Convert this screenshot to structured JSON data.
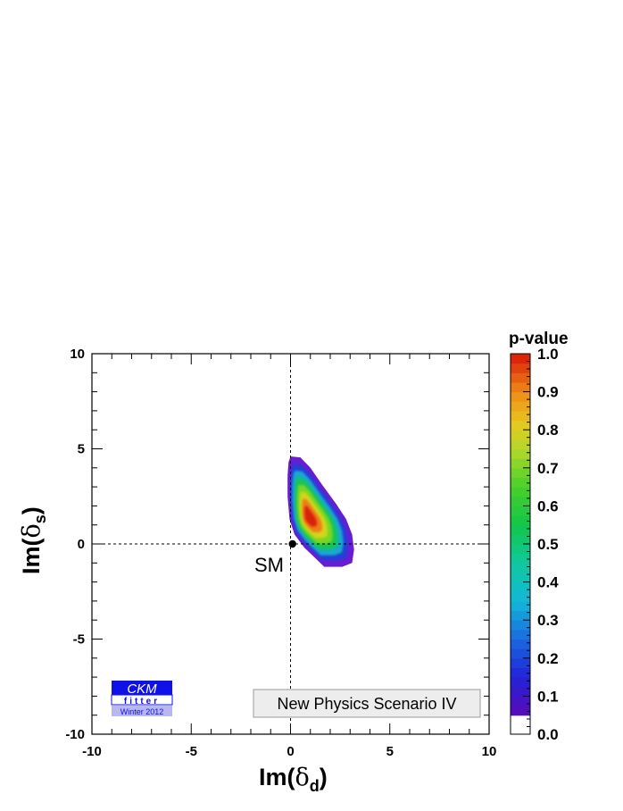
{
  "chart_data": {
    "type": "heatmap",
    "xlabel_main": "Im(",
    "xlabel_symbol": "δ",
    "xlabel_sub": "d",
    "xlabel_close": ")",
    "ylabel_main": "Im(",
    "ylabel_symbol": "δ",
    "ylabel_sub": "s",
    "ylabel_close": ")",
    "xlim": [
      -10,
      10
    ],
    "ylim": [
      -10,
      10
    ],
    "x_ticks": [
      -10,
      -5,
      0,
      5,
      10
    ],
    "y_ticks": [
      -10,
      -5,
      0,
      5,
      10
    ],
    "x_tick_labels": [
      "-10",
      "-5",
      "0",
      "5",
      "10"
    ],
    "y_tick_labels": [
      "-10",
      "-5",
      "0",
      "5",
      "10"
    ],
    "reference_lines": {
      "x": 0,
      "y": 0,
      "style": "dashed"
    },
    "sm_point": {
      "x": 0.1,
      "y": 0.0,
      "label": "SM"
    },
    "best_fit": {
      "x": 0.9,
      "y": 1.4
    },
    "p_value_regions": [
      {
        "p": 0.05,
        "color": "#6a1cd0",
        "outline": [
          [
            0.0,
            4.6
          ],
          [
            0.5,
            4.55
          ],
          [
            1.0,
            4.0
          ],
          [
            1.6,
            3.1
          ],
          [
            2.3,
            2.1
          ],
          [
            2.8,
            1.3
          ],
          [
            3.1,
            0.5
          ],
          [
            3.2,
            -0.3
          ],
          [
            3.1,
            -1.0
          ],
          [
            2.6,
            -1.2
          ],
          [
            1.7,
            -1.2
          ],
          [
            1.2,
            -0.7
          ],
          [
            0.7,
            -0.2
          ],
          [
            0.2,
            0.5
          ],
          [
            -0.05,
            1.3
          ],
          [
            -0.15,
            2.5
          ],
          [
            -0.15,
            3.6
          ],
          [
            -0.1,
            4.3
          ]
        ]
      },
      {
        "p": 0.2,
        "color": "#2a3ad8"
      },
      {
        "p": 0.35,
        "color": "#16aacd"
      },
      {
        "p": 0.5,
        "color": "#18c45a"
      },
      {
        "p": 0.65,
        "color": "#7ad624"
      },
      {
        "p": 0.75,
        "color": "#d2d51e"
      },
      {
        "p": 0.85,
        "color": "#ef7d14"
      },
      {
        "p": 0.95,
        "color": "#d8200c"
      }
    ],
    "colorbar": {
      "title": "p-value",
      "range": [
        0.0,
        1.0
      ],
      "tick_labels": [
        "0.0",
        "0.1",
        "0.2",
        "0.3",
        "0.4",
        "0.5",
        "0.6",
        "0.7",
        "0.8",
        "0.9",
        "1.0"
      ],
      "stops": [
        {
          "v": 0.05,
          "color": "#5a0ab8"
        },
        {
          "v": 0.15,
          "color": "#2222d8"
        },
        {
          "v": 0.25,
          "color": "#1a6ae0"
        },
        {
          "v": 0.35,
          "color": "#12b8d8"
        },
        {
          "v": 0.45,
          "color": "#10c8a0"
        },
        {
          "v": 0.55,
          "color": "#12c64a"
        },
        {
          "v": 0.65,
          "color": "#48d02a"
        },
        {
          "v": 0.75,
          "color": "#b4d82a"
        },
        {
          "v": 0.82,
          "color": "#e8c81e"
        },
        {
          "v": 0.9,
          "color": "#f08a18"
        },
        {
          "v": 1.0,
          "color": "#d81808"
        }
      ],
      "below_color": "#ffffff"
    },
    "legend_box": "New Physics Scenario IV",
    "logo": {
      "line1": "CKM",
      "line2": "fitter",
      "line3": "Winter 2012"
    }
  }
}
